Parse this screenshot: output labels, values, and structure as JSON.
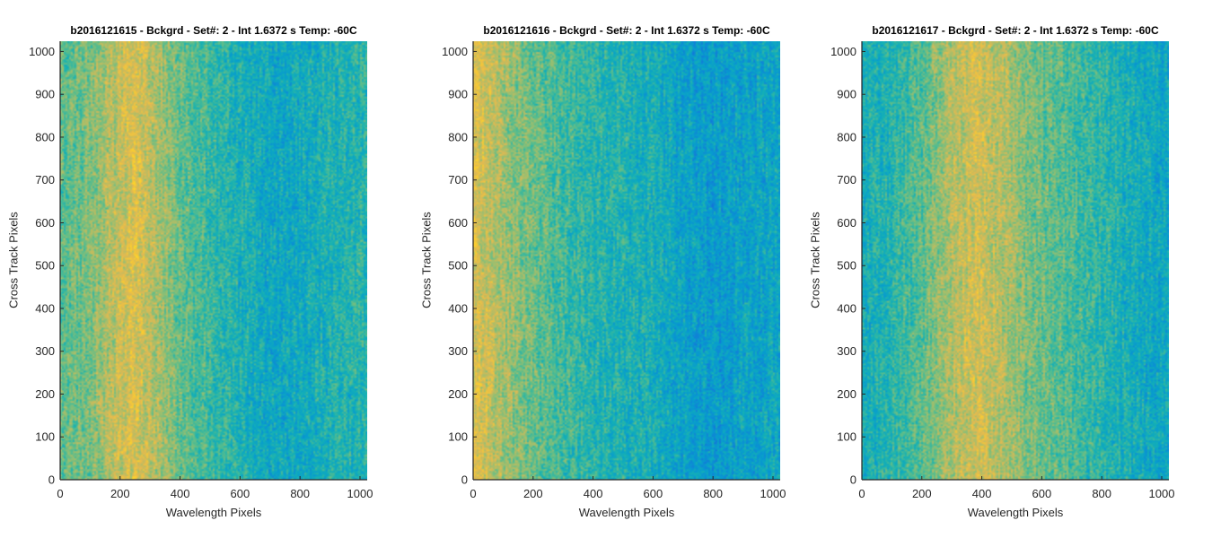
{
  "chart_data": [
    {
      "type": "heatmap",
      "title": "b2016121615 - Bckgrd - Set#: 2 - Int 1.6372 s Temp: -60C",
      "xlabel": "Wavelength Pixels",
      "ylabel": "Cross Track Pixels",
      "xlim": [
        0,
        1024
      ],
      "ylim": [
        0,
        1024
      ],
      "xticks": [
        "0",
        "200",
        "400",
        "600",
        "800",
        "1000"
      ],
      "yticks": [
        "0",
        "100",
        "200",
        "300",
        "400",
        "500",
        "600",
        "700",
        "800",
        "900",
        "1000"
      ],
      "colormap": "parula",
      "column_profile": {
        "x": [
          0,
          100,
          200,
          250,
          300,
          400,
          500,
          600,
          700,
          800,
          900,
          1024
        ],
        "level": [
          0.5,
          0.55,
          0.66,
          0.7,
          0.64,
          0.52,
          0.45,
          0.4,
          0.35,
          0.36,
          0.4,
          0.42
        ]
      }
    },
    {
      "type": "heatmap",
      "title": "b2016121616 - Bckgrd - Set#: 2 - Int 1.6372 s Temp: -60C",
      "xlabel": "Wavelength Pixels",
      "ylabel": "Cross Track Pixels",
      "xlim": [
        0,
        1024
      ],
      "ylim": [
        0,
        1024
      ],
      "xticks": [
        "0",
        "200",
        "400",
        "600",
        "800",
        "1000"
      ],
      "yticks": [
        "0",
        "100",
        "200",
        "300",
        "400",
        "500",
        "600",
        "700",
        "800",
        "900",
        "1000"
      ],
      "colormap": "parula",
      "column_profile": {
        "x": [
          0,
          50,
          100,
          200,
          300,
          400,
          500,
          600,
          700,
          800,
          900,
          1024
        ],
        "level": [
          0.7,
          0.66,
          0.6,
          0.52,
          0.46,
          0.42,
          0.4,
          0.38,
          0.33,
          0.3,
          0.33,
          0.35
        ]
      }
    },
    {
      "type": "heatmap",
      "title": "b2016121617 - Bckgrd - Set#: 2 - Int 1.6372 s Temp: -60C",
      "xlabel": "Wavelength Pixels",
      "ylabel": "Cross Track Pixels",
      "xlim": [
        0,
        1024
      ],
      "ylim": [
        0,
        1024
      ],
      "xticks": [
        "0",
        "200",
        "400",
        "600",
        "800",
        "1000"
      ],
      "yticks": [
        "0",
        "100",
        "200",
        "300",
        "400",
        "500",
        "600",
        "700",
        "800",
        "900",
        "1000"
      ],
      "colormap": "parula",
      "column_profile": {
        "x": [
          0,
          100,
          200,
          300,
          380,
          450,
          550,
          650,
          750,
          850,
          950,
          1024
        ],
        "level": [
          0.38,
          0.42,
          0.5,
          0.62,
          0.68,
          0.64,
          0.55,
          0.5,
          0.45,
          0.4,
          0.36,
          0.34
        ]
      }
    }
  ]
}
